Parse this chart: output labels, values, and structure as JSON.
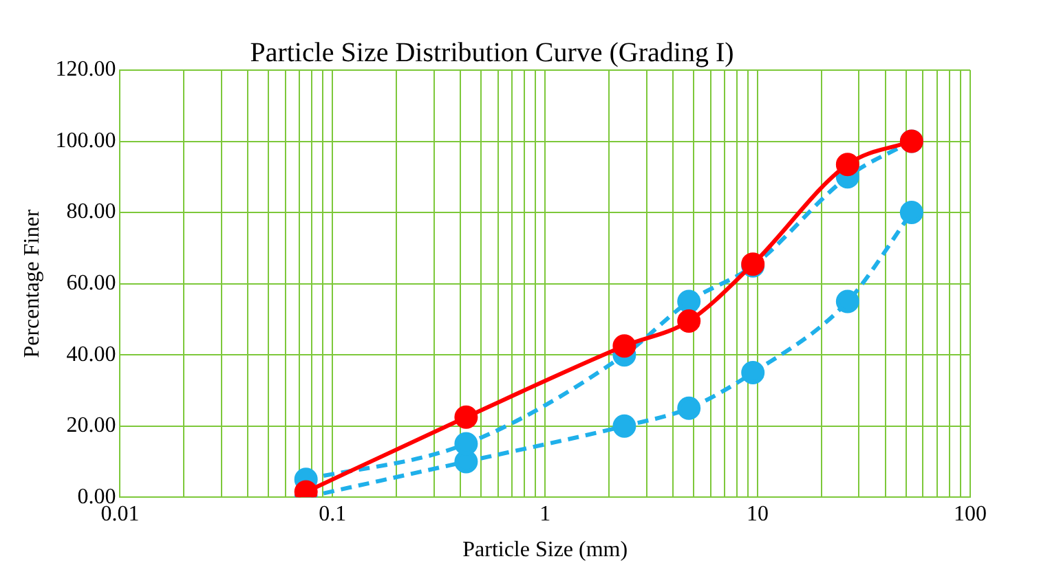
{
  "chart_data": {
    "type": "line",
    "title": "Particle Size Distribution Curve (Grading I)",
    "xlabel": "Particle Size (mm)",
    "ylabel": "Percentage Finer",
    "log": "x",
    "grid": true,
    "legend": false,
    "marker": "circle",
    "x": [
      0.075,
      0.425,
      2.36,
      4.75,
      9.5,
      26.5,
      53
    ],
    "xlim": [
      0.01,
      100
    ],
    "xticks": [
      0.01,
      {
        "value": 0.02,
        "label": null
      },
      {
        "value": 0.03,
        "label": null
      },
      {
        "value": 0.04,
        "label": null
      },
      {
        "value": 0.05,
        "label": null
      },
      {
        "value": 0.06,
        "label": null
      },
      {
        "value": 0.07,
        "label": null
      },
      {
        "value": 0.08,
        "label": null
      },
      {
        "value": 0.09,
        "label": null
      },
      0.1,
      {
        "value": 0.2,
        "label": null
      },
      {
        "value": 0.3,
        "label": null
      },
      {
        "value": 0.4,
        "label": null
      },
      {
        "value": 0.5,
        "label": null
      },
      {
        "value": 0.6,
        "label": null
      },
      {
        "value": 0.7,
        "label": null
      },
      {
        "value": 0.8,
        "label": null
      },
      {
        "value": 0.9,
        "label": null
      },
      1,
      {
        "value": 2,
        "label": null
      },
      {
        "value": 3,
        "label": null
      },
      {
        "value": 4,
        "label": null
      },
      {
        "value": 5,
        "label": null
      },
      {
        "value": 6,
        "label": null
      },
      {
        "value": 7,
        "label": null
      },
      {
        "value": 8,
        "label": null
      },
      {
        "value": 9,
        "label": null
      },
      10,
      {
        "value": 20,
        "label": null
      },
      {
        "value": 30,
        "label": null
      },
      {
        "value": 40,
        "label": null
      },
      {
        "value": 50,
        "label": null
      },
      {
        "value": 60,
        "label": null
      },
      {
        "value": 70,
        "label": null
      },
      {
        "value": 80,
        "label": null
      },
      {
        "value": 90,
        "label": null
      },
      100
    ],
    "ylim": [
      0,
      120
    ],
    "yticks": [
      {
        "value": 0,
        "label": "0.00"
      },
      {
        "value": 20,
        "label": "20.00"
      },
      {
        "value": 40,
        "label": "40.00"
      },
      {
        "value": 60,
        "label": "60.00"
      },
      {
        "value": 80,
        "label": "80.00"
      },
      {
        "value": 100,
        "label": "100.00"
      },
      {
        "value": 120,
        "label": "120.00"
      }
    ],
    "series": [
      {
        "color": "#ff0000",
        "line_style": "solid",
        "values": [
          1.5,
          22.5,
          42.5,
          49.5,
          65.5,
          93.5,
          100
        ]
      },
      {
        "color": "#1fb0ea",
        "line_style": "dashed",
        "values": [
          5,
          15,
          40,
          55,
          65,
          90,
          100
        ]
      },
      {
        "color": "#1fb0ea",
        "line_style": "dashed",
        "values": [
          0,
          10,
          20,
          25,
          35,
          55,
          80
        ]
      }
    ]
  }
}
